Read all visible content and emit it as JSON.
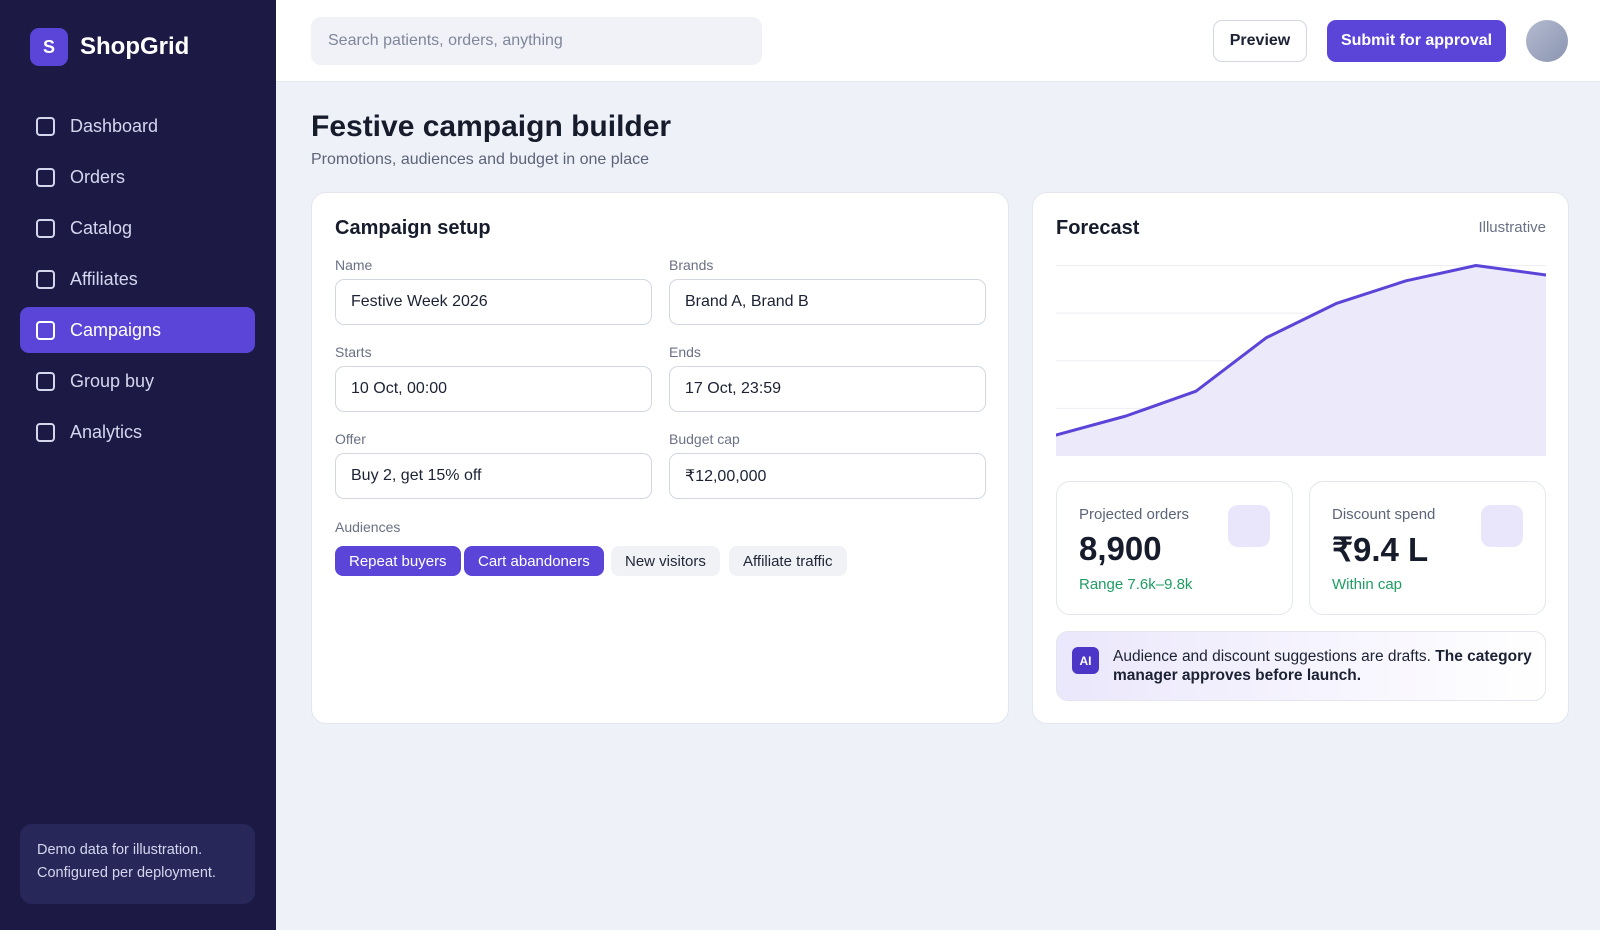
{
  "app": {
    "brand_letter": "S",
    "brand_name": "ShopGrid"
  },
  "sidebar": {
    "items": [
      {
        "label": "Dashboard",
        "active": false
      },
      {
        "label": "Orders",
        "active": false
      },
      {
        "label": "Catalog",
        "active": false
      },
      {
        "label": "Affiliates",
        "active": false
      },
      {
        "label": "Campaigns",
        "active": true
      },
      {
        "label": "Group buy",
        "active": false
      },
      {
        "label": "Analytics",
        "active": false
      }
    ],
    "note_line1": "Demo data for illustration.",
    "note_line2": "Configured per deployment."
  },
  "topbar": {
    "search_placeholder": "Search patients, orders, anything",
    "preview_label": "Preview",
    "submit_label": "Submit for approval"
  },
  "page": {
    "title": "Festive campaign builder",
    "subtitle": "Promotions, audiences and budget in one place"
  },
  "setup": {
    "title": "Campaign setup",
    "fields": {
      "name": {
        "label": "Name",
        "value": "Festive Week 2026"
      },
      "brands": {
        "label": "Brands",
        "value": "Brand A, Brand B"
      },
      "starts": {
        "label": "Starts",
        "value": "10 Oct, 00:00"
      },
      "ends": {
        "label": "Ends",
        "value": "17 Oct, 23:59"
      },
      "offer": {
        "label": "Offer",
        "value": "Buy 2, get 15% off"
      },
      "budget": {
        "label": "Budget cap",
        "value": "₹12,00,000"
      }
    },
    "audiences_label": "Audiences",
    "audiences": [
      {
        "label": "Repeat buyers",
        "selected": true
      },
      {
        "label": "Cart abandoners",
        "selected": true
      },
      {
        "label": "New visitors",
        "selected": false
      },
      {
        "label": "Affiliate traffic",
        "selected": false
      }
    ]
  },
  "forecast": {
    "title": "Forecast",
    "note": "Illustrative",
    "stats": {
      "orders": {
        "label": "Projected orders",
        "value": "8,900",
        "note": "Range 7.6k–9.8k"
      },
      "spend": {
        "label": "Discount spend",
        "value": "₹9.4 L",
        "note": "Within cap"
      }
    },
    "ai": {
      "badge": "AI",
      "text": "Audience and discount suggestions are drafts.",
      "emphasis": "The category manager approves before launch."
    }
  },
  "chart_data": {
    "type": "area",
    "x": [
      0,
      1,
      2,
      3,
      4,
      5,
      6,
      7
    ],
    "values": [
      11,
      21,
      34,
      62,
      80,
      92,
      100,
      95
    ],
    "ylim": [
      0,
      105
    ],
    "grid": true,
    "colors": {
      "line": "#5b45d9",
      "fill": "#ece9fb",
      "grid": "#eceef4"
    }
  }
}
